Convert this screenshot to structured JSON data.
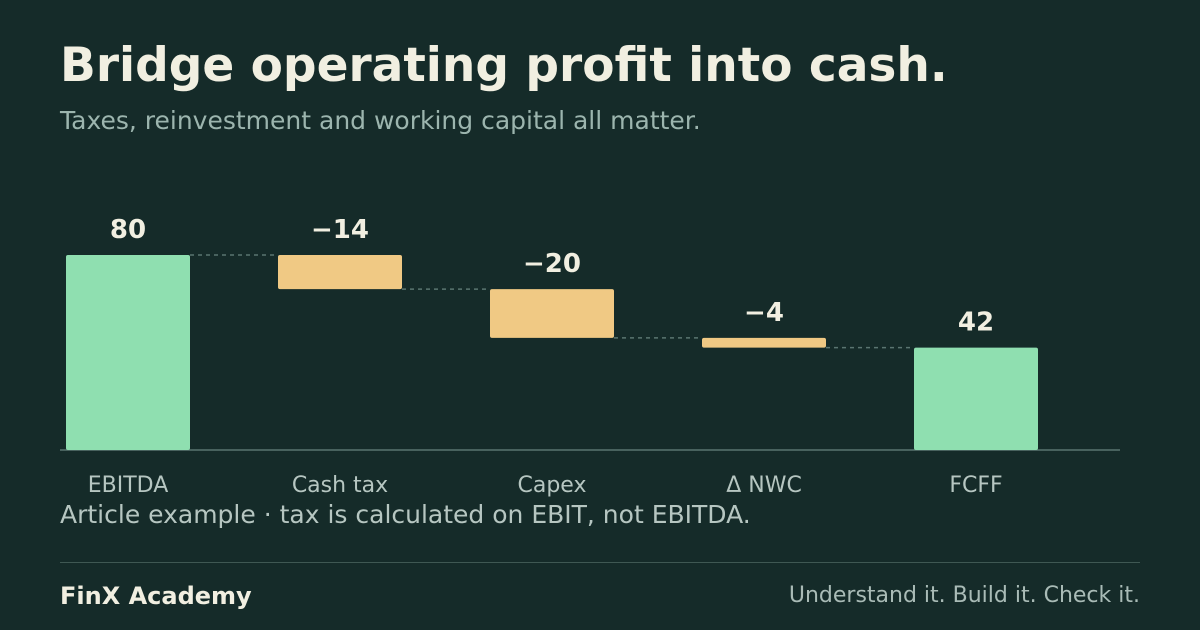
{
  "header": {
    "title": "Bridge operating profit into cash.",
    "subtitle": "Taxes, reinvestment and working capital all matter."
  },
  "chart_data": {
    "type": "bar",
    "subtype": "waterfall",
    "categories": [
      "EBITDA",
      "Cash tax",
      "Capex",
      "Δ NWC",
      "FCFF"
    ],
    "values": [
      80,
      -14,
      -20,
      -4,
      42
    ],
    "kinds": [
      "total",
      "delta",
      "delta",
      "delta",
      "total"
    ],
    "value_labels": [
      "80",
      "−14",
      "−20",
      "−4",
      "42"
    ],
    "ylim": [
      0,
      80
    ],
    "grid": false,
    "legend": "none",
    "colors": {
      "total": "#8fdfb0",
      "delta": "#f0c984",
      "connector": "#5a7570",
      "axis": "#5a7570",
      "label": "#f1efe1",
      "category": "#b6c6c1"
    }
  },
  "note": "Article example · tax is calculated on EBIT, not EBITDA.",
  "footer": {
    "brand": "FinX Academy",
    "tagline": "Understand it. Build it. Check it."
  }
}
